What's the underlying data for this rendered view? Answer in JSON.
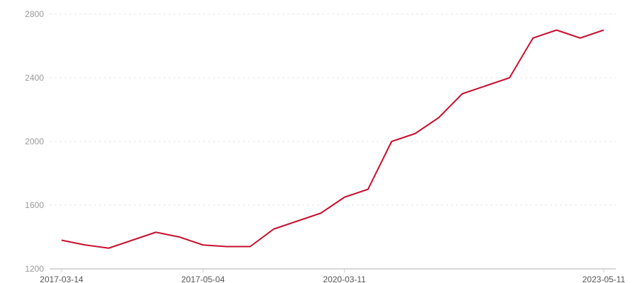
{
  "chart_data": {
    "type": "line",
    "title": "",
    "xlabel": "",
    "ylabel": "",
    "ylim": [
      1200,
      2800
    ],
    "yticks": [
      1200,
      1600,
      2000,
      2400,
      2800
    ],
    "grid": "horizontal dashed",
    "x_tick_labels": [
      {
        "index": 0,
        "label": "2017-03-14"
      },
      {
        "index": 6,
        "label": "2017-05-04"
      },
      {
        "index": 12,
        "label": "2020-03-11"
      },
      {
        "index": 23,
        "label": "2023-05-11"
      }
    ],
    "values": [
      1380,
      1350,
      1330,
      1380,
      1430,
      1400,
      1350,
      1340,
      1340,
      1450,
      1500,
      1550,
      1650,
      1700,
      2000,
      2050,
      2150,
      2300,
      2350,
      2400,
      2650,
      2700,
      2650,
      2700
    ],
    "line_color": "#c8102e"
  }
}
